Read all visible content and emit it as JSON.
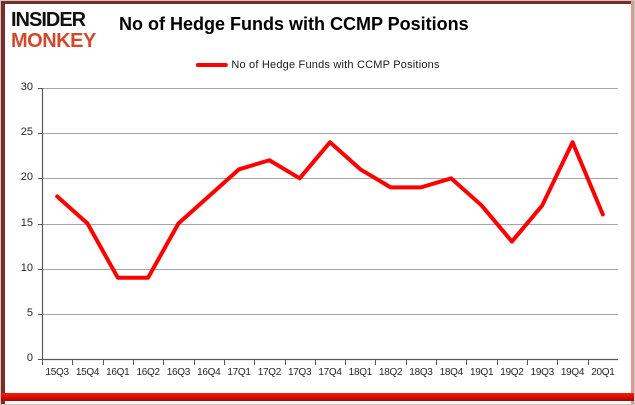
{
  "header": {
    "logo_line1": "INSIDER",
    "logo_line2": "MONKEY",
    "title": "No of Hedge Funds with CCMP Positions"
  },
  "legend": {
    "label": "No of Hedge Funds with CCMP Positions",
    "line_color": "#ff0000"
  },
  "chart_data": {
    "type": "line",
    "title": "No of Hedge Funds with CCMP Positions",
    "categories": [
      "15Q3",
      "15Q4",
      "16Q1",
      "16Q2",
      "16Q3",
      "16Q4",
      "17Q1",
      "17Q2",
      "17Q3",
      "17Q4",
      "18Q1",
      "18Q2",
      "18Q3",
      "18Q4",
      "19Q1",
      "19Q2",
      "19Q3",
      "19Q4",
      "20Q1"
    ],
    "series": [
      {
        "name": "No of Hedge Funds with CCMP Positions",
        "color": "#ff0000",
        "values": [
          18,
          15,
          9,
          9,
          15,
          18,
          21,
          22,
          20,
          24,
          21,
          19,
          19,
          20,
          17,
          13,
          17,
          24,
          16
        ]
      }
    ],
    "xlabel": "",
    "ylabel": "",
    "ylim": [
      0,
      30
    ],
    "y_ticks": [
      0,
      5,
      10,
      15,
      20,
      25,
      30
    ],
    "grid": "horizontal",
    "legend_position": "top-center"
  },
  "colors": {
    "accent_red": "#ff0000",
    "logo_orange": "#d04a2a",
    "frame_maroon": "#7a2c27",
    "bottom_bar_top": "#ff1a00",
    "bottom_bar_bottom": "#ae0000",
    "gridline": "#a6a6a6",
    "axis": "#595959",
    "text": "#262626"
  }
}
